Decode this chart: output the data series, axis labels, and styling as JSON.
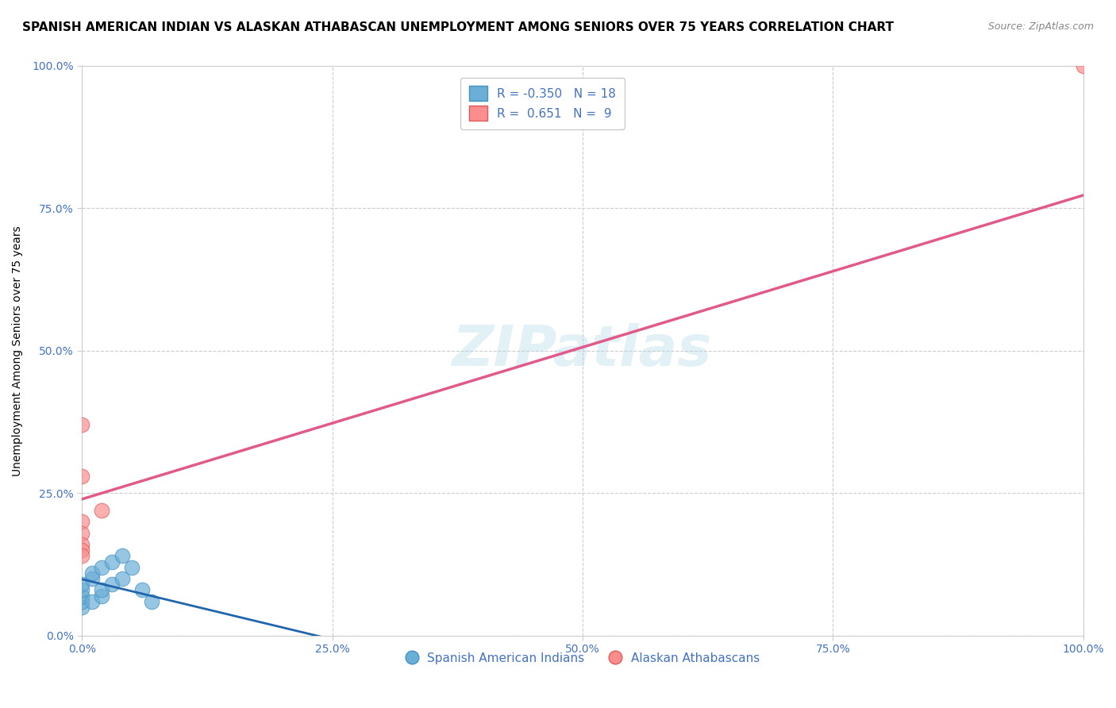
{
  "title": "SPANISH AMERICAN INDIAN VS ALASKAN ATHABASCAN UNEMPLOYMENT AMONG SENIORS OVER 75 YEARS CORRELATION CHART",
  "source": "Source: ZipAtlas.com",
  "xlabel": "",
  "ylabel": "Unemployment Among Seniors over 75 years",
  "xlim": [
    0,
    1
  ],
  "ylim": [
    0,
    1
  ],
  "xticks": [
    0.0,
    0.25,
    0.5,
    0.75,
    1.0
  ],
  "yticks": [
    0.0,
    0.25,
    0.5,
    0.75,
    1.0
  ],
  "xticklabels": [
    "0.0%",
    "25.0%",
    "50.0%",
    "75.0%",
    "100.0%"
  ],
  "yticklabels": [
    "0.0%",
    "25.0%",
    "50.0%",
    "75.0%",
    "100.0%"
  ],
  "watermark": "ZIPatlas",
  "legend_r1": "R = -0.350",
  "legend_n1": "N = 18",
  "legend_r2": "R =  0.651",
  "legend_n2": "N =  9",
  "blue_color": "#6baed6",
  "blue_edge": "#4292c6",
  "pink_color": "#fc8d8d",
  "pink_edge": "#e05a5a",
  "blue_line_color": "#2166ac",
  "pink_line_color": "#e05a8a",
  "blue_scatter_x": [
    0.0,
    0.0,
    0.0,
    0.0,
    0.0,
    0.01,
    0.01,
    0.01,
    0.02,
    0.02,
    0.02,
    0.03,
    0.03,
    0.04,
    0.04,
    0.05,
    0.06,
    0.07
  ],
  "blue_scatter_y": [
    0.05,
    0.06,
    0.07,
    0.08,
    0.09,
    0.06,
    0.1,
    0.11,
    0.07,
    0.08,
    0.12,
    0.09,
    0.13,
    0.1,
    0.14,
    0.12,
    0.08,
    0.06
  ],
  "pink_scatter_x": [
    0.0,
    0.0,
    0.02,
    0.0,
    0.0,
    0.0,
    0.0,
    0.0,
    1.0
  ],
  "pink_scatter_y": [
    0.37,
    0.28,
    0.22,
    0.2,
    0.18,
    0.16,
    0.15,
    0.14,
    1.0
  ],
  "blue_R": -0.35,
  "blue_N": 18,
  "pink_R": 0.651,
  "pink_N": 9,
  "grid_color": "#cccccc",
  "tick_color": "#4472c4",
  "background_color": "#ffffff",
  "title_fontsize": 11,
  "axis_label_fontsize": 10,
  "tick_fontsize": 10
}
